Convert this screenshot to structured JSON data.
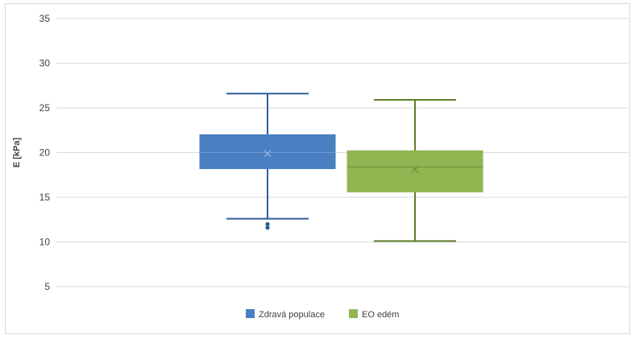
{
  "chart_data": {
    "type": "box",
    "xlabel": "",
    "ylabel": "E [kPa]",
    "ylim": [
      5,
      35
    ],
    "yticks": [
      5,
      10,
      15,
      20,
      25,
      30,
      35
    ],
    "grid": true,
    "legend_position": "bottom",
    "series": [
      {
        "name": "Zdravá populace",
        "color": "#4a7fc1",
        "min": 12.6,
        "q1": 18.2,
        "median": 20.0,
        "q3": 22.0,
        "max": 26.6,
        "mean": 19.9,
        "outliers": [
          12.0,
          11.6
        ]
      },
      {
        "name": "EO edém",
        "color": "#92b552",
        "min": 10.1,
        "q1": 15.6,
        "median": 18.4,
        "q3": 20.2,
        "max": 25.9,
        "mean": 18.1,
        "outliers": []
      }
    ]
  }
}
